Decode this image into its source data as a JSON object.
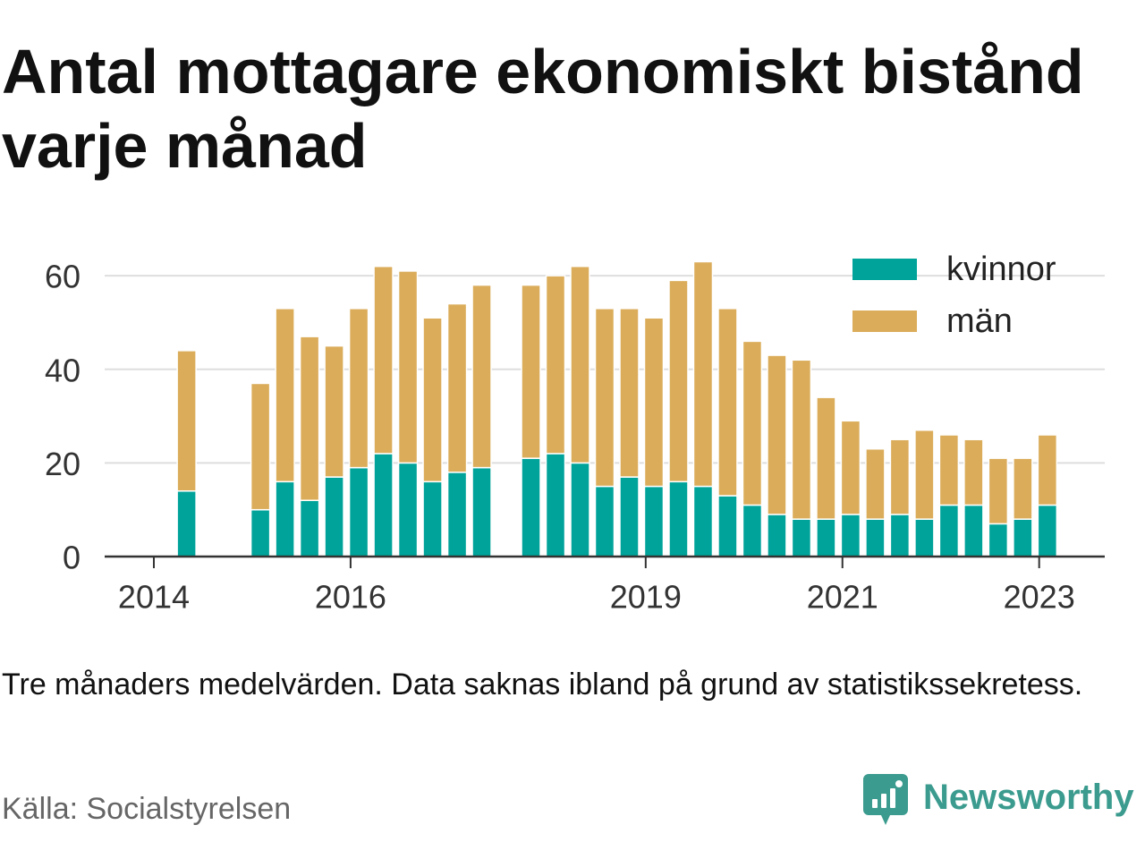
{
  "chart_data": {
    "type": "bar",
    "stacked": true,
    "title": "Antal mottagare ekonomiskt bistånd varje månad",
    "x": [
      "2014-05",
      "2015-02",
      "2015-05",
      "2015-08",
      "2015-11",
      "2016-02",
      "2016-05",
      "2016-08",
      "2016-11",
      "2017-02",
      "2017-05",
      "2017-11",
      "2018-02",
      "2018-05",
      "2018-08",
      "2018-11",
      "2019-02",
      "2019-05",
      "2019-08",
      "2019-11",
      "2020-02",
      "2020-05",
      "2020-08",
      "2020-11",
      "2021-02",
      "2021-05",
      "2021-08",
      "2021-11",
      "2022-02",
      "2022-05",
      "2022-08",
      "2022-11",
      "2023-02"
    ],
    "xticks": [
      "2014",
      "2016",
      "2019",
      "2021",
      "2023"
    ],
    "xlim": [
      "2013-07",
      "2023-09"
    ],
    "yticks": [
      0,
      20,
      40,
      60
    ],
    "ylim": [
      0,
      65
    ],
    "grid": true,
    "legend": "top-right",
    "series": [
      {
        "name": "kvinnor",
        "color": "#00a39a",
        "values": [
          14,
          10,
          16,
          12,
          17,
          19,
          22,
          20,
          16,
          18,
          19,
          21,
          22,
          20,
          15,
          17,
          15,
          16,
          15,
          13,
          11,
          9,
          8,
          8,
          9,
          8,
          9,
          8,
          11,
          11,
          7,
          8,
          11
        ]
      },
      {
        "name": "män",
        "color": "#dbad5b",
        "values": [
          30,
          27,
          37,
          35,
          28,
          34,
          40,
          41,
          35,
          36,
          39,
          37,
          38,
          42,
          38,
          36,
          36,
          43,
          48,
          40,
          35,
          34,
          34,
          26,
          20,
          15,
          16,
          19,
          15,
          14,
          14,
          13,
          15
        ]
      }
    ]
  },
  "note": "Tre månaders medelvärden. Data saknas ibland på grund av statistikssekretess.",
  "source": "Källa: Socialstyrelsen",
  "logo": {
    "text": "Newsworthy",
    "icon": "newsworthy-logo-icon",
    "color": "#3b9b8e"
  }
}
